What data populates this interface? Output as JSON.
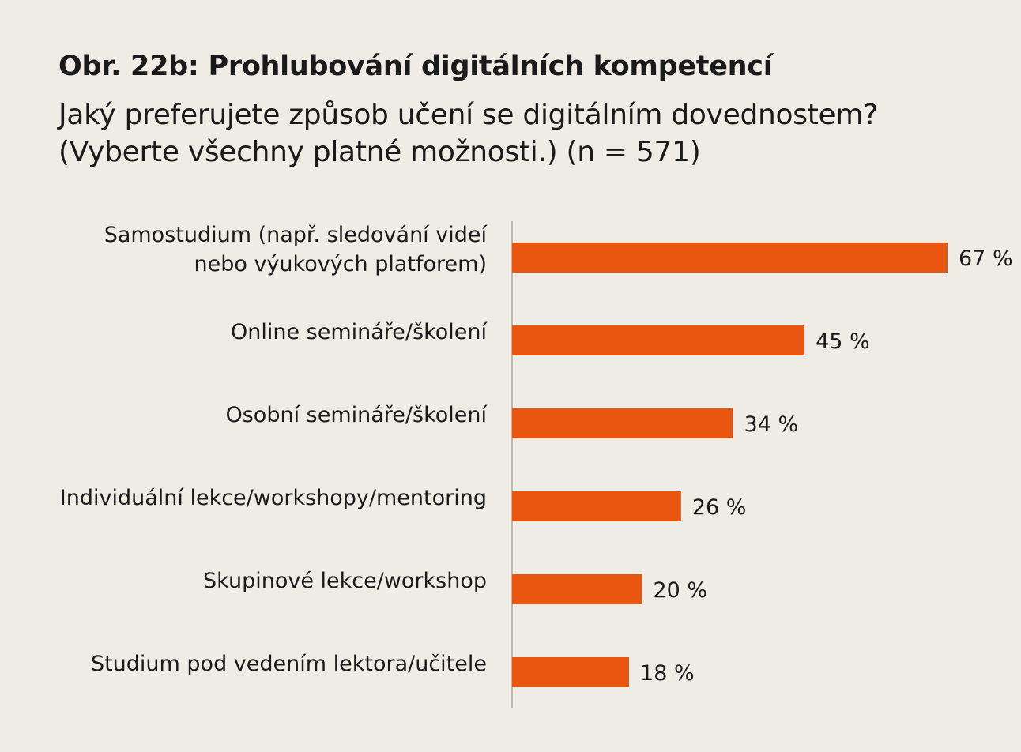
{
  "header": {
    "title": "Obr. 22b: Prohlubování digitálních kompetencí",
    "subtitle_line1": "Jaký preferujete způsob učení se digitálním dovednostem?",
    "subtitle_line2": "(Vyberte všechny platné možnosti.) (n = 571)"
  },
  "colors": {
    "bar": "#e8560f",
    "axis": "#bdbab5",
    "background": "#efebe5"
  },
  "chart_data": {
    "type": "bar",
    "orientation": "horizontal",
    "title": "Obr. 22b: Prohlubování digitálních kompetencí",
    "subtitle": "Jaký preferujete způsob učení se digitálním dovednostem? (Vyberte všechny platné možnosti.) (n = 571)",
    "categories": [
      [
        "Samostudium (např. sledování videí",
        "nebo výukových platforem)"
      ],
      [
        "Online semináře/školení"
      ],
      [
        "Osobní semináře/školení"
      ],
      [
        "Individuální lekce/workshopy/mentoring"
      ],
      [
        "Skupinové lekce/workshop"
      ],
      [
        "Studium pod vedením lektora/učitele"
      ]
    ],
    "values": [
      67,
      45,
      34,
      26,
      20,
      18
    ],
    "value_labels": [
      "67 %",
      "45 %",
      "34 %",
      "26 %",
      "20 %",
      "18 %"
    ],
    "unit": "%",
    "xlim": [
      0,
      67
    ],
    "grid": false,
    "legend": "none"
  }
}
